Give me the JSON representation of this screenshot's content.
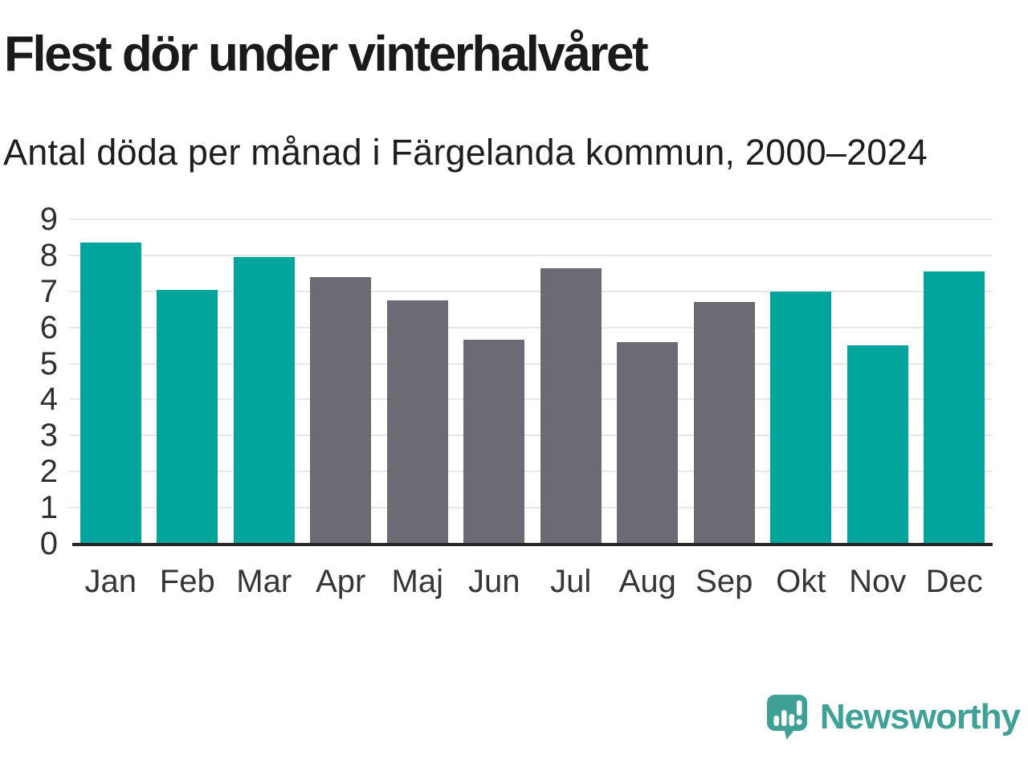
{
  "header": {
    "title": "Flest dör under vinterhalvåret",
    "subtitle": "Antal döda per månad i Färgelanda kommun, 2000–2024"
  },
  "chart_data": {
    "type": "bar",
    "categories": [
      "Jan",
      "Feb",
      "Mar",
      "Apr",
      "Maj",
      "Jun",
      "Jul",
      "Aug",
      "Sep",
      "Okt",
      "Nov",
      "Dec"
    ],
    "values": [
      8.35,
      7.05,
      7.95,
      7.4,
      6.75,
      5.65,
      7.65,
      5.6,
      6.7,
      7.0,
      5.5,
      7.55
    ],
    "bar_colors": [
      "#00A49B",
      "#00A49B",
      "#00A49B",
      "#6C6B74",
      "#6C6B74",
      "#6C6B74",
      "#6C6B74",
      "#6C6B74",
      "#6C6B74",
      "#00A49B",
      "#00A49B",
      "#00A49B"
    ],
    "title": "Flest dör under vinterhalvåret",
    "subtitle": "Antal döda per månad i Färgelanda kommun, 2000–2024",
    "xlabel": "",
    "ylabel": "",
    "ylim": [
      0,
      9
    ],
    "yticks": [
      0,
      1,
      2,
      3,
      4,
      5,
      6,
      7,
      8,
      9
    ],
    "grid": true,
    "legend": "none",
    "highlight_color": "#00A49B",
    "default_color": "#6C6B74"
  },
  "branding": {
    "logo_text": "Newsworthy",
    "logo_color": "#3FA096"
  },
  "colors": {
    "background": "#ffffff",
    "title_text": "#1a1a1a",
    "subtitle_text": "#1e1e1e",
    "axis_line": "#262626",
    "gridline": "#e8e8e8",
    "tick_text": "#2f2f2f"
  }
}
